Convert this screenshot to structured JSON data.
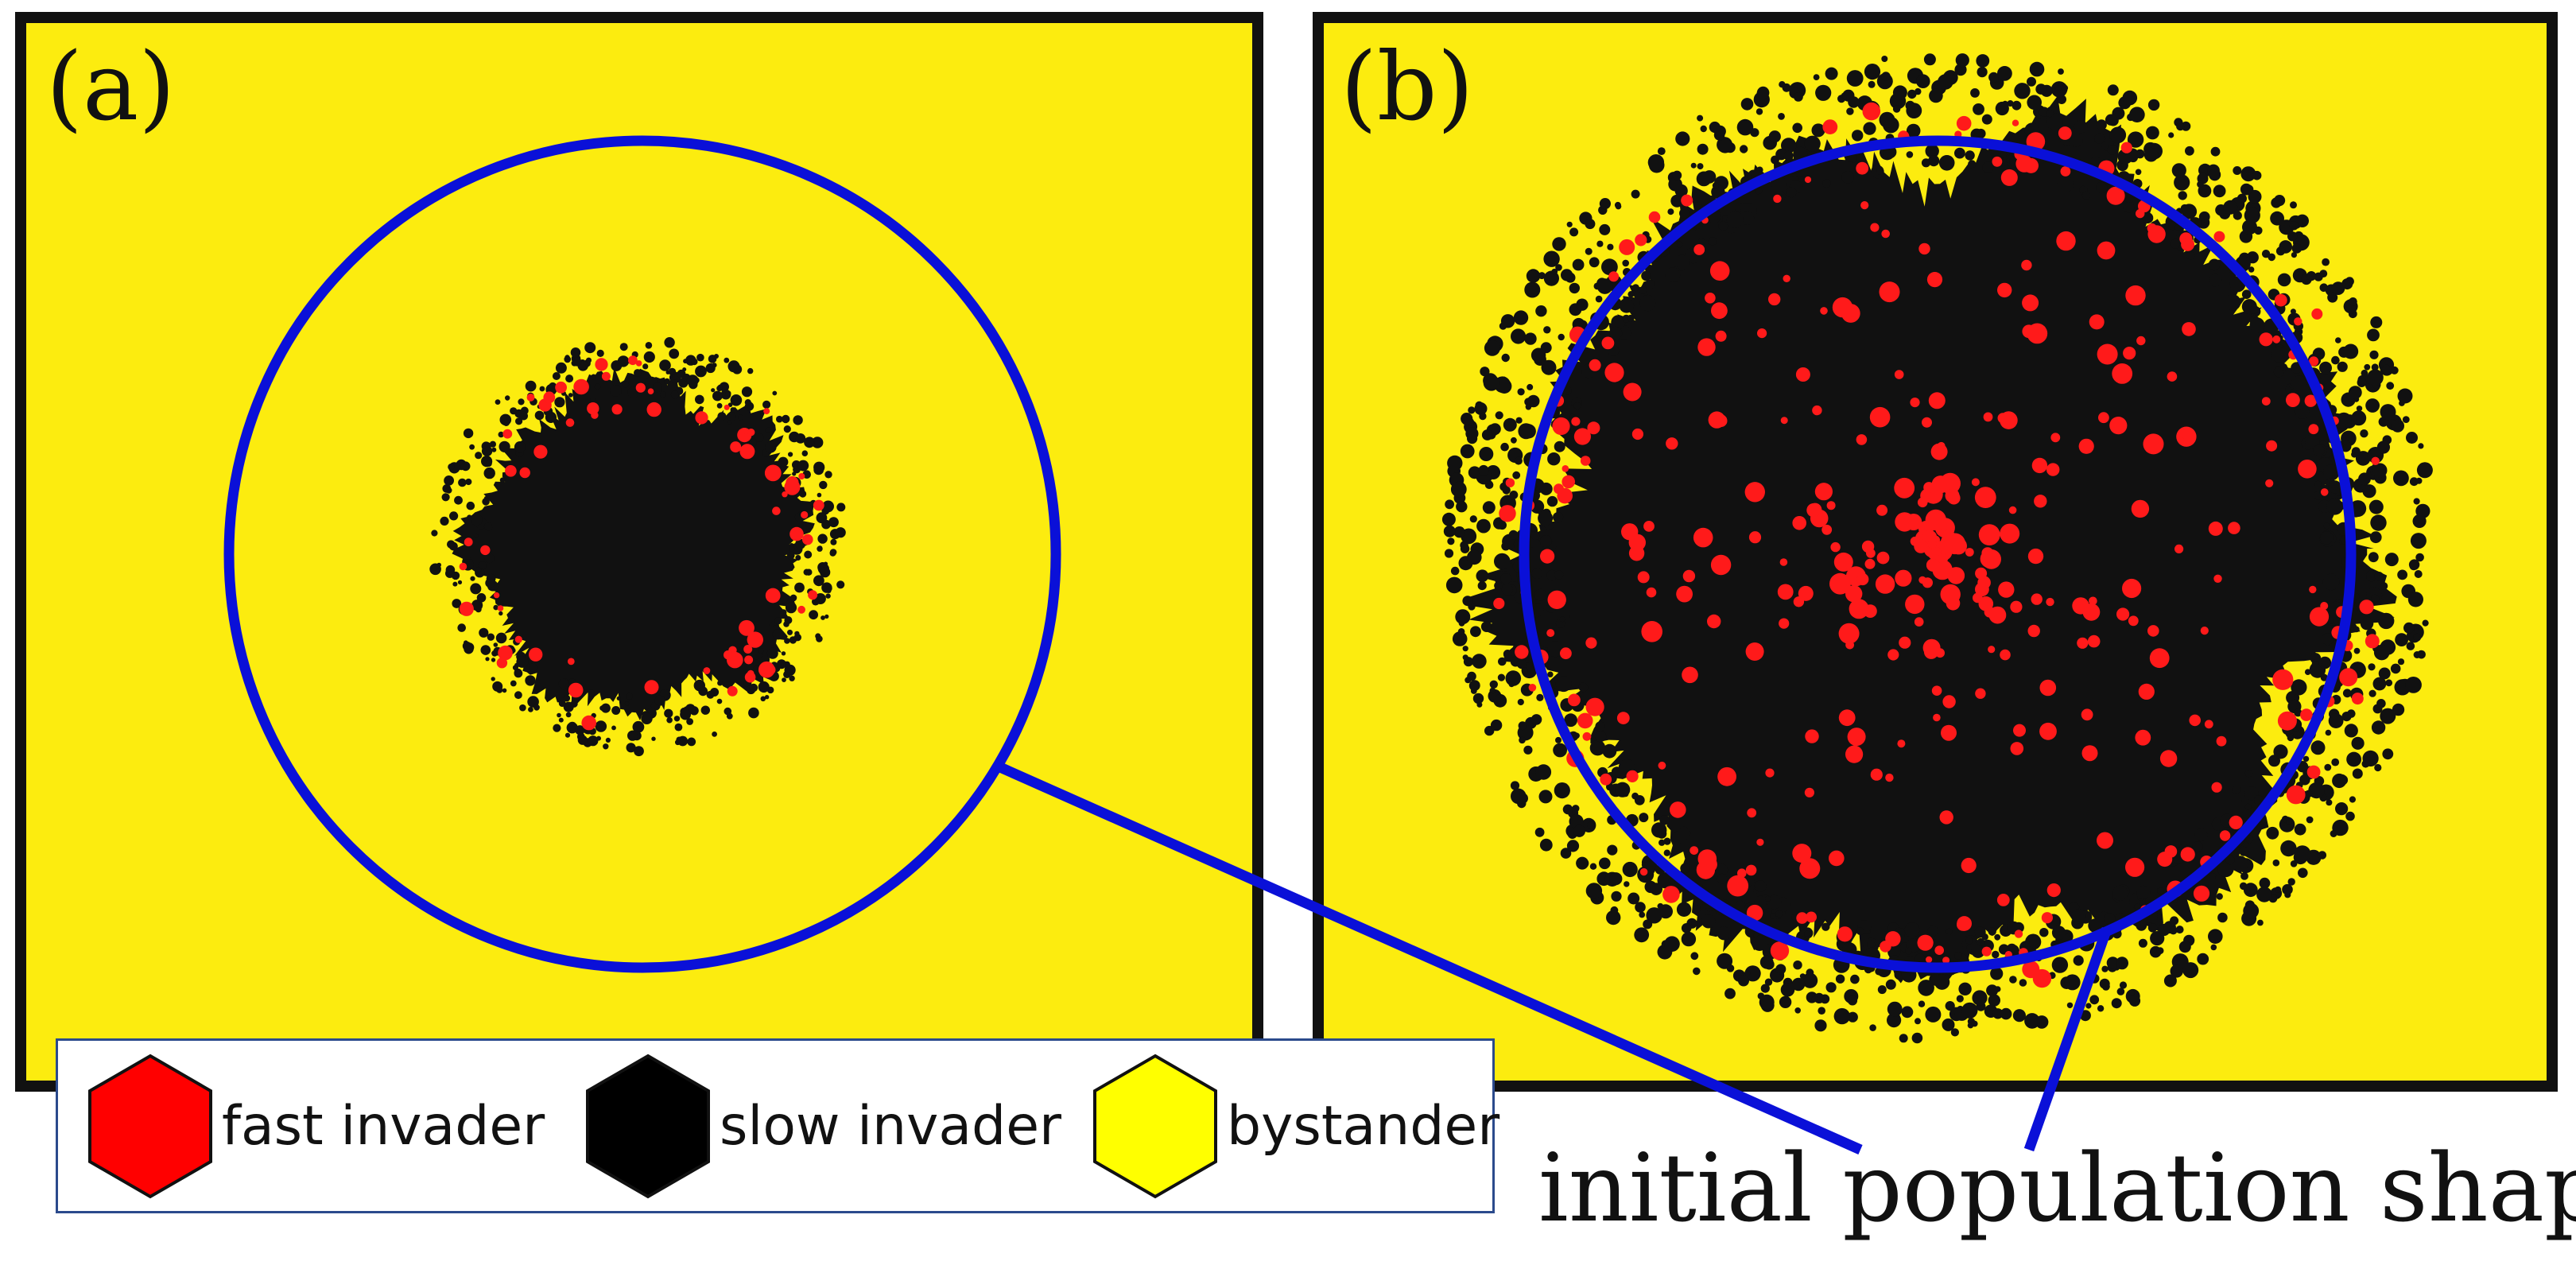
{
  "panels": [
    {
      "label": "(a)"
    },
    {
      "label": "(b)"
    }
  ],
  "legend": {
    "items": [
      {
        "label": "fast invader",
        "color": "#ff0000",
        "icon": "hexagon-icon"
      },
      {
        "label": "slow invader",
        "color": "#000000",
        "icon": "hexagon-icon"
      },
      {
        "label": "bystander",
        "color": "#ffff00",
        "icon": "hexagon-icon"
      }
    ]
  },
  "annotation": {
    "text": "initial population shape"
  },
  "colors": {
    "background_field": "#fcec0f",
    "outline_circle": "#0a10d8",
    "frame": "#111111",
    "slow_invader": "#111111",
    "fast_invader": "#ff1a1a"
  }
}
